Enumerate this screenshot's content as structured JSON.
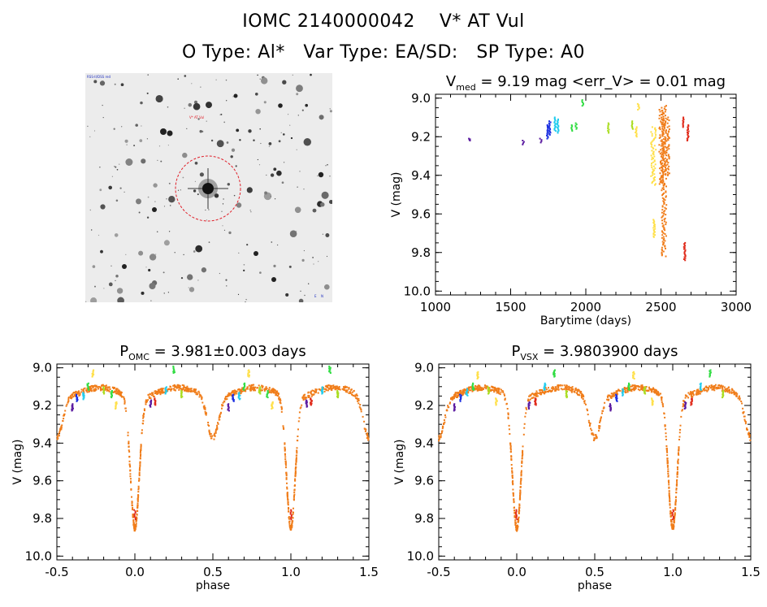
{
  "header": {
    "title_line1": "IOMC 2140000042    V* AT Vul",
    "title_line2": "O Type: Al*   Var Type: EA/SD:   SP Type: A0"
  },
  "image_panel": {
    "star_field_corner_labels": [
      "RSS-II/DSS red",
      "V* AT Vul",
      "N",
      "E"
    ],
    "target_circle_color": "#e0202a"
  },
  "colors": {
    "purple": "#5a1aa0",
    "blue": "#1a2ee0",
    "cyan": "#22ccee",
    "green": "#33dd44",
    "lime": "#aadd22",
    "yellow": "#ffe04a",
    "orange": "#f07d1a",
    "red": "#e02a1a"
  },
  "chart_data": [
    {
      "id": "lightcurve",
      "type": "scatter",
      "title_main": "V",
      "title_sub": "med",
      "title_rest": " = 9.19 mag <err_V> = 0.01 mag",
      "xlabel": "Barytime (days)",
      "ylabel": "V (mag)",
      "xlim": [
        1000,
        3000
      ],
      "ylim": [
        10.02,
        8.98
      ],
      "xticks": [
        1000,
        1500,
        2000,
        2500,
        3000
      ],
      "yticks": [
        9.0,
        9.2,
        9.4,
        9.6,
        9.8,
        10.0
      ],
      "segments": [
        {
          "x": 1225,
          "y0": 9.21,
          "y1": 9.22,
          "color": "purple"
        },
        {
          "x": 1585,
          "y0": 9.22,
          "y1": 9.24,
          "color": "purple"
        },
        {
          "x": 1700,
          "y0": 9.21,
          "y1": 9.23,
          "color": "purple"
        },
        {
          "x": 1745,
          "y0": 9.14,
          "y1": 9.21,
          "color": "blue"
        },
        {
          "x": 1760,
          "y0": 9.12,
          "y1": 9.19,
          "color": "blue"
        },
        {
          "x": 1795,
          "y0": 9.1,
          "y1": 9.17,
          "color": "cyan"
        },
        {
          "x": 1815,
          "y0": 9.11,
          "y1": 9.18,
          "color": "cyan"
        },
        {
          "x": 1905,
          "y0": 9.14,
          "y1": 9.17,
          "color": "green"
        },
        {
          "x": 1935,
          "y0": 9.13,
          "y1": 9.16,
          "color": "green"
        },
        {
          "x": 1980,
          "y0": 9.01,
          "y1": 9.04,
          "color": "green"
        },
        {
          "x": 2150,
          "y0": 9.13,
          "y1": 9.18,
          "color": "lime"
        },
        {
          "x": 2310,
          "y0": 9.12,
          "y1": 9.16,
          "color": "lime"
        },
        {
          "x": 2335,
          "y0": 9.15,
          "y1": 9.2,
          "color": "yellow"
        },
        {
          "x": 2350,
          "y0": 9.03,
          "y1": 9.06,
          "color": "yellow"
        },
        {
          "x": 2450,
          "y0": 9.15,
          "y1": 9.45,
          "color": "yellow"
        },
        {
          "x": 2455,
          "y0": 9.63,
          "y1": 9.72,
          "color": "yellow"
        },
        {
          "x": 2505,
          "y0": 9.06,
          "y1": 9.45,
          "color": "orange"
        },
        {
          "x": 2520,
          "y0": 9.04,
          "y1": 9.82,
          "color": "orange"
        },
        {
          "x": 2540,
          "y0": 9.1,
          "y1": 9.4,
          "color": "orange"
        },
        {
          "x": 2650,
          "y0": 9.1,
          "y1": 9.15,
          "color": "red"
        },
        {
          "x": 2658,
          "y0": 9.75,
          "y1": 9.84,
          "color": "red"
        },
        {
          "x": 2680,
          "y0": 9.14,
          "y1": 9.22,
          "color": "red"
        }
      ]
    },
    {
      "id": "phase-omc",
      "type": "scatter",
      "title_main": "P",
      "title_sub": "OMC",
      "title_rest": " = 3.981±0.003 days",
      "xlabel": "phase",
      "ylabel": "V (mag)",
      "xlim": [
        -0.5,
        1.5
      ],
      "ylim": [
        10.02,
        8.98
      ],
      "xticks": [
        -0.5,
        0.0,
        0.5,
        1.0,
        1.5
      ],
      "yticks": [
        9.0,
        9.2,
        9.4,
        9.6,
        9.8,
        10.0
      ],
      "curve": {
        "base": 9.13,
        "primary_depth": 0.7,
        "primary_width": 0.04,
        "secondary_depth": 0.22,
        "secondary_width": 0.05
      },
      "color_groups": [
        {
          "phase": -0.4,
          "y": 9.21,
          "color": "purple"
        },
        {
          "phase": -0.37,
          "y": 9.16,
          "color": "blue"
        },
        {
          "phase": -0.33,
          "y": 9.15,
          "color": "cyan"
        },
        {
          "phase": -0.3,
          "y": 9.1,
          "color": "green"
        },
        {
          "phase": -0.27,
          "y": 9.03,
          "color": "yellow"
        },
        {
          "phase": -0.2,
          "y": 9.12,
          "color": "lime"
        },
        {
          "phase": -0.15,
          "y": 9.14,
          "color": "green"
        },
        {
          "phase": -0.12,
          "y": 9.2,
          "color": "yellow"
        },
        {
          "phase": 0.1,
          "y": 9.19,
          "color": "purple"
        },
        {
          "phase": 0.13,
          "y": 9.18,
          "color": "red"
        },
        {
          "phase": 0.2,
          "y": 9.12,
          "color": "cyan"
        },
        {
          "phase": 0.25,
          "y": 9.01,
          "color": "green"
        },
        {
          "phase": 0.3,
          "y": 9.14,
          "color": "lime"
        },
        {
          "phase": 0.6,
          "y": 9.21,
          "color": "purple"
        },
        {
          "phase": 0.63,
          "y": 9.16,
          "color": "blue"
        },
        {
          "phase": 0.67,
          "y": 9.15,
          "color": "cyan"
        },
        {
          "phase": 0.7,
          "y": 9.1,
          "color": "green"
        },
        {
          "phase": 0.73,
          "y": 9.03,
          "color": "yellow"
        },
        {
          "phase": 0.8,
          "y": 9.12,
          "color": "lime"
        },
        {
          "phase": 0.85,
          "y": 9.14,
          "color": "green"
        },
        {
          "phase": 0.88,
          "y": 9.2,
          "color": "yellow"
        },
        {
          "phase": 1.1,
          "y": 9.19,
          "color": "purple"
        },
        {
          "phase": 1.13,
          "y": 9.18,
          "color": "red"
        },
        {
          "phase": 1.2,
          "y": 9.12,
          "color": "cyan"
        },
        {
          "phase": 1.25,
          "y": 9.01,
          "color": "green"
        },
        {
          "phase": 1.3,
          "y": 9.14,
          "color": "lime"
        }
      ],
      "red_points": [
        {
          "phase": 0.0,
          "y": 9.78
        },
        {
          "phase": 1.0,
          "y": 9.78
        }
      ]
    },
    {
      "id": "phase-vsx",
      "type": "scatter",
      "title_main": "P",
      "title_sub": "VSX",
      "title_rest": " = 3.9803900 days",
      "xlabel": "phase",
      "ylabel": "V (mag)",
      "xlim": [
        -0.5,
        1.5
      ],
      "ylim": [
        10.02,
        8.98
      ],
      "xticks": [
        -0.5,
        0.0,
        0.5,
        1.0,
        1.5
      ],
      "yticks": [
        9.0,
        9.2,
        9.4,
        9.6,
        9.8,
        10.0
      ],
      "curve": {
        "base": 9.13,
        "primary_depth": 0.7,
        "primary_width": 0.04,
        "secondary_depth": 0.22,
        "secondary_width": 0.05
      },
      "color_groups": [
        {
          "phase": -0.4,
          "y": 9.21,
          "color": "purple"
        },
        {
          "phase": -0.36,
          "y": 9.16,
          "color": "blue"
        },
        {
          "phase": -0.32,
          "y": 9.13,
          "color": "cyan"
        },
        {
          "phase": -0.28,
          "y": 9.1,
          "color": "green"
        },
        {
          "phase": -0.25,
          "y": 9.04,
          "color": "yellow"
        },
        {
          "phase": -0.18,
          "y": 9.12,
          "color": "lime"
        },
        {
          "phase": -0.13,
          "y": 9.18,
          "color": "yellow"
        },
        {
          "phase": 0.08,
          "y": 9.2,
          "color": "purple"
        },
        {
          "phase": 0.12,
          "y": 9.18,
          "color": "red"
        },
        {
          "phase": 0.18,
          "y": 9.1,
          "color": "cyan"
        },
        {
          "phase": 0.24,
          "y": 9.03,
          "color": "green"
        },
        {
          "phase": 0.32,
          "y": 9.14,
          "color": "lime"
        },
        {
          "phase": 0.6,
          "y": 9.21,
          "color": "purple"
        },
        {
          "phase": 0.64,
          "y": 9.16,
          "color": "blue"
        },
        {
          "phase": 0.68,
          "y": 9.13,
          "color": "cyan"
        },
        {
          "phase": 0.72,
          "y": 9.1,
          "color": "green"
        },
        {
          "phase": 0.75,
          "y": 9.04,
          "color": "yellow"
        },
        {
          "phase": 0.82,
          "y": 9.12,
          "color": "lime"
        },
        {
          "phase": 0.87,
          "y": 9.18,
          "color": "yellow"
        },
        {
          "phase": 1.08,
          "y": 9.2,
          "color": "purple"
        },
        {
          "phase": 1.12,
          "y": 9.18,
          "color": "red"
        },
        {
          "phase": 1.18,
          "y": 9.1,
          "color": "cyan"
        },
        {
          "phase": 1.24,
          "y": 9.03,
          "color": "green"
        },
        {
          "phase": 1.32,
          "y": 9.14,
          "color": "lime"
        }
      ],
      "red_points": [
        {
          "phase": 0.0,
          "y": 9.78
        },
        {
          "phase": 1.0,
          "y": 9.78
        }
      ]
    }
  ]
}
